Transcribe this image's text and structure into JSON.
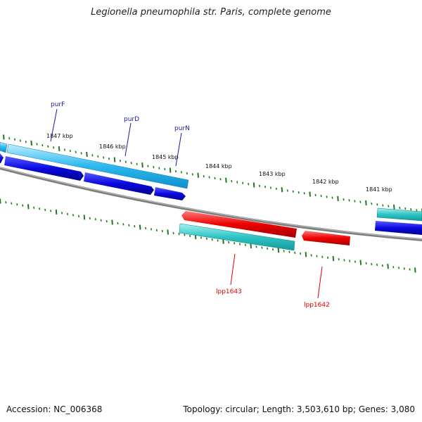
{
  "title": "Legionella pneumophila str. Paris, complete genome",
  "footer": {
    "accession": "Accession: NC_006368",
    "summary": "Topology: circular; Length: 3,503,610 bp; Genes: 3,080"
  },
  "kbp_labels": [
    "1847 kbp",
    "1846 kbp",
    "1845 kbp",
    "1844 kbp",
    "1843 kbp",
    "1842 kbp",
    "1841 kbp"
  ],
  "gene_labels": {
    "purF": "purF",
    "purD": "purD",
    "purN": "purN",
    "lpp1643": "lpp1643",
    "lpp1642": "lpp1642"
  },
  "colors": {
    "backbone": "#7a7a7a",
    "tick": "#1f7a1f",
    "gene_forward": "#29b6f0",
    "gene_blue": "#0a0ae0",
    "gene_teal": "#2ec4c4",
    "gene_red": "#ee0000"
  }
}
